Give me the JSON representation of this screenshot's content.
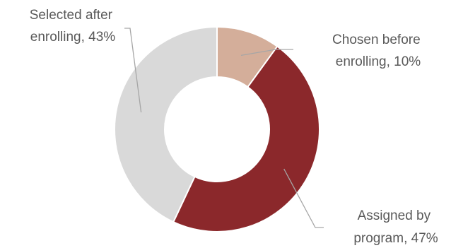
{
  "chart_data": {
    "type": "pie",
    "variant": "donut",
    "slices": [
      {
        "label_line1": "Chosen before",
        "label_line2": "enrolling, 10%",
        "value": 10,
        "color": "#D4AE9A"
      },
      {
        "label_line1": "Assigned by",
        "label_line2": "program, 47%",
        "value": 47,
        "color": "#8B282B"
      },
      {
        "label_line1": "Selected after",
        "label_line2": "enrolling, 43%",
        "value": 43,
        "color": "#D9D9D9"
      }
    ],
    "legend": "none",
    "label_color": "#595959",
    "leader_line_color": "#A6A6A6"
  }
}
